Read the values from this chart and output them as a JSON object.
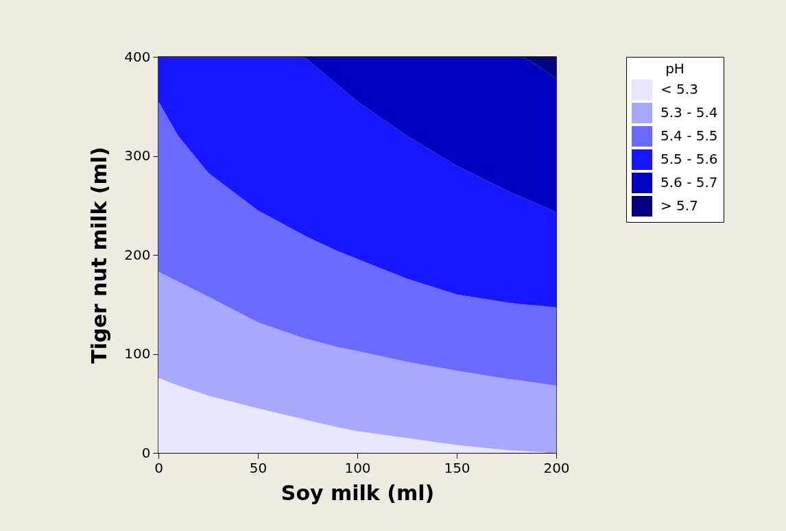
{
  "chart_data": {
    "type": "area",
    "stacked": true,
    "xlabel": "Soy milk (ml)",
    "ylabel": "Tiger nut milk (ml)",
    "legend_title": "pH",
    "legend": "right",
    "grid": false,
    "xlim": [
      0,
      200
    ],
    "xticks": [
      0,
      50,
      100,
      150,
      200
    ],
    "ylim": [
      0,
      400
    ],
    "yticks": [
      0,
      100,
      200,
      300,
      400
    ],
    "x": [
      0,
      10,
      25,
      50,
      73,
      75,
      90,
      100,
      125,
      150,
      175,
      183,
      190,
      200
    ],
    "series": [
      {
        "name": "< 5.3",
        "color": "#e8e8fc",
        "values": [
          76,
          68,
          58,
          45,
          34,
          33,
          26,
          22,
          15,
          8,
          3,
          2,
          1,
          0
        ]
      },
      {
        "name": "5.3 - 5.4",
        "color": "#a8a8fc",
        "values": [
          107,
          105,
          100,
          87,
          82,
          82,
          81,
          81,
          77,
          75,
          72,
          71,
          70,
          68
        ]
      },
      {
        "name": "5.4 - 5.5",
        "color": "#6a6afe",
        "values": [
          172,
          147,
          125,
          113,
          104,
          103,
          97,
          93,
          84,
          77,
          77,
          77,
          78,
          79
        ]
      },
      {
        "name": "5.5 - 5.6",
        "color": "#1616ff",
        "values": [
          45,
          80,
          117,
          155,
          180,
          179,
          168,
          159,
          144,
          130,
          113,
          108,
          103,
          96
        ]
      },
      {
        "name": "5.6 - 5.7",
        "color": "#0000c0",
        "values": [
          0,
          0,
          0,
          0,
          0,
          3,
          28,
          45,
          80,
          110,
          135,
          142,
          140,
          135
        ]
      },
      {
        "name": "> 5.7",
        "color": "#000080",
        "values": [
          0,
          0,
          0,
          0,
          0,
          0,
          0,
          0,
          0,
          0,
          0,
          0,
          8,
          22
        ]
      }
    ]
  }
}
